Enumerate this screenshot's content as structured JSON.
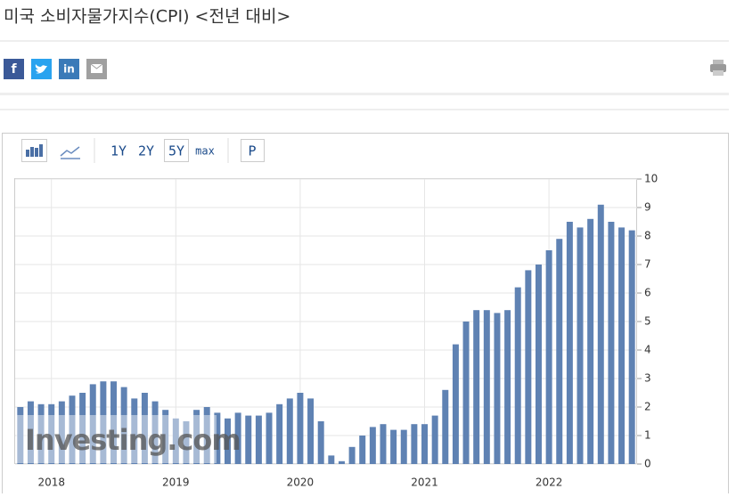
{
  "header": {
    "title": "미국 소비자물가지수(CPI) <전년 대비>",
    "share": [
      "f",
      "in"
    ]
  },
  "toolbar": [
    "1Y",
    "2Y",
    "5Y",
    "max",
    "P"
  ],
  "chart_data": {
    "type": "bar",
    "watermark": "Investing.com",
    "color": "#5f82b3",
    "categories": [
      null,
      null,
      null,
      "2018",
      null,
      null,
      null,
      null,
      null,
      null,
      null,
      null,
      null,
      null,
      null,
      "2019",
      null,
      null,
      null,
      null,
      null,
      null,
      null,
      null,
      null,
      null,
      null,
      "2020",
      null,
      null,
      null,
      null,
      null,
      null,
      null,
      null,
      null,
      null,
      null,
      "2021",
      null,
      null,
      null,
      null,
      null,
      null,
      null,
      null,
      null,
      null,
      null,
      "2022",
      null,
      null,
      null,
      null,
      null,
      null,
      null,
      null
    ],
    "values": [
      2.0,
      2.2,
      2.1,
      2.1,
      2.2,
      2.4,
      2.5,
      2.8,
      2.9,
      2.9,
      2.7,
      2.3,
      2.5,
      2.2,
      1.9,
      1.6,
      1.5,
      1.9,
      2.0,
      1.8,
      1.6,
      1.8,
      1.7,
      1.7,
      1.8,
      2.1,
      2.3,
      2.5,
      2.3,
      1.5,
      0.3,
      0.1,
      0.6,
      1.0,
      1.3,
      1.4,
      1.2,
      1.2,
      1.4,
      1.4,
      1.7,
      2.6,
      4.2,
      5.0,
      5.4,
      5.4,
      5.3,
      5.4,
      6.2,
      6.8,
      7.0,
      7.5,
      7.9,
      8.5,
      8.3,
      8.6,
      9.1,
      8.5,
      8.3,
      8.2
    ],
    "ylim": [
      0,
      10
    ],
    "yticks": [
      0,
      1,
      2,
      3,
      4,
      5,
      6,
      7,
      8,
      9,
      10
    ],
    "grid": true
  }
}
